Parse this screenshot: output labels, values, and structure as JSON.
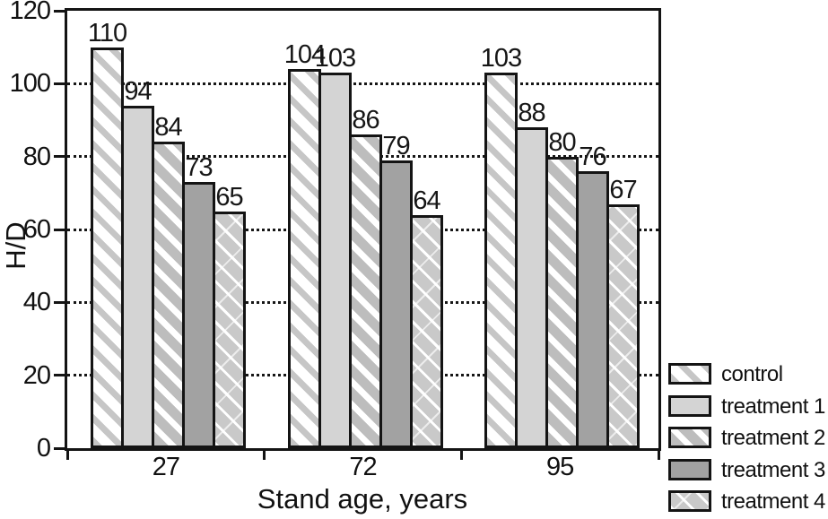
{
  "colors": {
    "background": "#ffffff",
    "axis": "#141414",
    "text": "#161616",
    "bar_border": "#141414",
    "hatch_thin_gray": "#c6c6c6",
    "solid_light_gray": "#d4d4d4",
    "hatch_thick_gray": "#bdbdbd",
    "solid_medium_gray": "#a2a2a2",
    "crosshatch_background_gray": "#c9c9c9"
  },
  "chart_data": {
    "type": "bar",
    "title": "",
    "ylabel": "H/D",
    "xlabel": "Stand age, years",
    "categories": [
      "27",
      "72",
      "95"
    ],
    "series": [
      {
        "name": "control",
        "pattern": "diagonal-hatch-thin",
        "values": [
          110,
          104,
          103
        ]
      },
      {
        "name": "treatment 1",
        "pattern": "solid-light-gray",
        "values": [
          94,
          103,
          88
        ]
      },
      {
        "name": "treatment 2",
        "pattern": "diagonal-hatch-thick",
        "values": [
          84,
          86,
          80
        ]
      },
      {
        "name": "treatment 3",
        "pattern": "solid-medium-gray",
        "values": [
          73,
          79,
          76
        ]
      },
      {
        "name": "treatment 4",
        "pattern": "white-crosshatch-on-gray",
        "values": [
          65,
          64,
          67
        ]
      }
    ],
    "bar_labels_shown": true,
    "ylim": [
      0,
      120
    ],
    "yticks": [
      0,
      20,
      40,
      60,
      80,
      100,
      120
    ],
    "gridlines": [
      20,
      40,
      60,
      80,
      100
    ],
    "grid_style": "dotted",
    "legend_position": "bottom-right",
    "legend_entries": [
      "control",
      "treatment 1",
      "treatment 2",
      "treatment 3",
      "treatment 4"
    ]
  }
}
